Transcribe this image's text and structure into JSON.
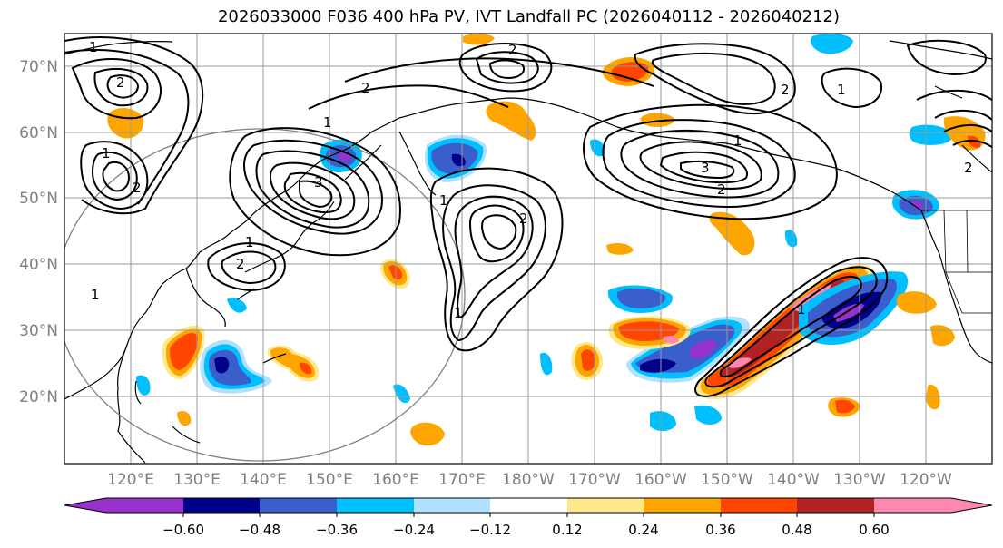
{
  "title": "2026033000 F036 400 hPa PV, IVT Landfall PC (2026040112 - 2026040212)",
  "map": {
    "lat_labels": [
      "70°N",
      "60°N",
      "50°N",
      "40°N",
      "30°N",
      "20°N"
    ],
    "lon_labels": [
      "120°E",
      "130°E",
      "140°E",
      "150°E",
      "160°E",
      "170°E",
      "180°W",
      "170°W",
      "160°W",
      "150°W",
      "140°W",
      "130°W",
      "120°W"
    ],
    "contour_labels": [
      "1",
      "2",
      "1",
      "2",
      "3",
      "1",
      "2",
      "1",
      "2",
      "1",
      "2",
      "1",
      "2",
      "3",
      "2",
      "1",
      "2",
      "1",
      "1",
      "1",
      "2"
    ],
    "colors": {
      "gridline": "#999999",
      "contour": "#000000",
      "coast": "#000000",
      "circle": "#808080"
    }
  },
  "colorbar": {
    "tick_labels": [
      "−0.60",
      "−0.48",
      "−0.36",
      "−0.24",
      "−0.12",
      "0.12",
      "0.24",
      "0.36",
      "0.48",
      "0.60"
    ],
    "colors": [
      "#9932CC",
      "#00008B",
      "#3A5FCD",
      "#00BFFF",
      "#B0E2FF",
      "#FFFFFF",
      "#FFE88A",
      "#FFA500",
      "#FF4500",
      "#B22222",
      "#FF88B0"
    ]
  }
}
